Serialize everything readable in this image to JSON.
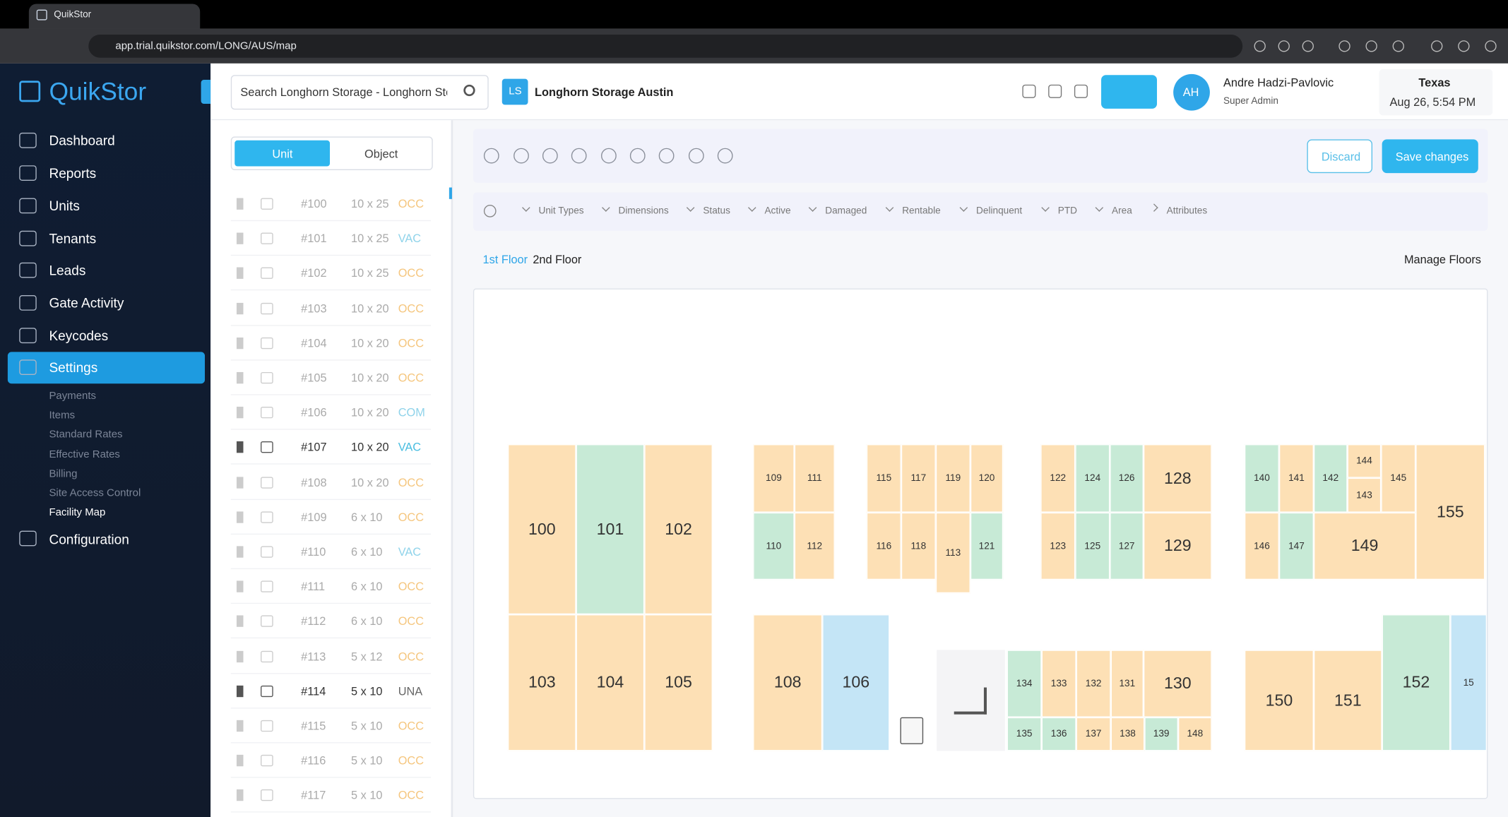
{
  "browser": {
    "tab_title": "QuikStor",
    "url": "app.trial.quikstor.com/LONG/AUS/map"
  },
  "sidebar": {
    "brand": "QuikStor",
    "nav": [
      "Dashboard",
      "Reports",
      "Units",
      "Tenants",
      "Leads",
      "Gate Activity",
      "Keycodes",
      "Settings"
    ],
    "settings_menu": [
      "Payments",
      "Items",
      "Standard Rates",
      "Effective Rates",
      "Billing",
      "Site Access Control",
      "Facility Map"
    ],
    "configuration": "Configuration"
  },
  "header": {
    "search_placeholder": "Search Longhorn Storage - Longhorn Stc",
    "facility_badge": "LS",
    "facility": "Longhorn Storage Austin",
    "user_initials": "AH",
    "user_name": "Andre Hadzi-Pavlovic",
    "user_role": "Super Admin",
    "location": "Texas",
    "datetime": "Aug 26, 5:54 PM"
  },
  "unit_list": {
    "tabs": [
      "Unit",
      "Object"
    ],
    "rows": [
      [
        "#100",
        "10 x 25",
        "OCC"
      ],
      [
        "#101",
        "10 x 25",
        "VAC"
      ],
      [
        "#102",
        "10 x 25",
        "OCC"
      ],
      [
        "#103",
        "10 x 20",
        "OCC"
      ],
      [
        "#104",
        "10 x 20",
        "OCC"
      ],
      [
        "#105",
        "10 x 20",
        "OCC"
      ],
      [
        "#106",
        "10 x 20",
        "COM"
      ],
      [
        "#107",
        "10 x 20",
        "VAC"
      ],
      [
        "#108",
        "10 x 20",
        "OCC"
      ],
      [
        "#109",
        "6 x 10",
        "OCC"
      ],
      [
        "#110",
        "6 x 10",
        "VAC"
      ],
      [
        "#111",
        "6 x 10",
        "OCC"
      ],
      [
        "#112",
        "6 x 10",
        "OCC"
      ],
      [
        "#113",
        "5 x 12",
        "OCC"
      ],
      [
        "#114",
        "5 x 10",
        "UNA"
      ],
      [
        "#115",
        "5 x 10",
        "OCC"
      ],
      [
        "#116",
        "5 x 10",
        "OCC"
      ],
      [
        "#117",
        "5 x 10",
        "OCC"
      ]
    ]
  },
  "toolbar": {
    "discard": "Discard",
    "save": "Save changes"
  },
  "filters": [
    "Unit Types",
    "Dimensions",
    "Status",
    "Active",
    "Damaged",
    "Rentable",
    "Delinquent",
    "PTD",
    "Area",
    "Attributes"
  ],
  "floors": {
    "tabs": [
      "1st Floor",
      "2nd Floor"
    ],
    "manage": "Manage Floors"
  },
  "map": {
    "units": [
      "100",
      "101",
      "102",
      "103",
      "104",
      "105",
      "109",
      "111",
      "110",
      "112",
      "115",
      "117",
      "119",
      "120",
      "116",
      "118",
      "113",
      "121",
      "122",
      "124",
      "126",
      "128",
      "123",
      "125",
      "127",
      "129",
      "140",
      "141",
      "142",
      "144",
      "143",
      "145",
      "155",
      "146",
      "147",
      "149",
      "108",
      "106",
      "134",
      "133",
      "132",
      "131",
      "130",
      "135",
      "136",
      "137",
      "138",
      "139",
      "148",
      "150",
      "151",
      "152",
      "15"
    ]
  }
}
